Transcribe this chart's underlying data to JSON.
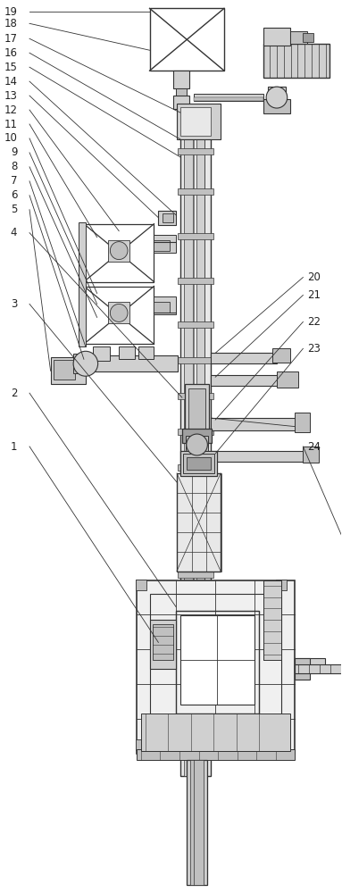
{
  "bg_color": "#ffffff",
  "lc": "#333333",
  "lc2": "#555555",
  "gray1": "#e8e8e8",
  "gray2": "#d0d0d0",
  "gray3": "#c0c0c0",
  "gray4": "#a0a0a0",
  "gray5": "#f0f0f0",
  "figsize": [
    3.83,
    10.0
  ],
  "dpi": 100
}
